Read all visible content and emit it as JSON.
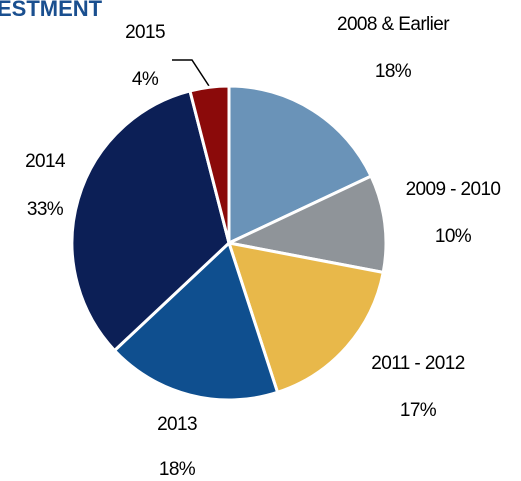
{
  "chart_data": {
    "type": "pie",
    "title": "ESTMENT",
    "categories": [
      "2008 & Earlier",
      "2009 - 2010",
      "2011 - 2012",
      "2013",
      "2014",
      "2015"
    ],
    "values": [
      18,
      10,
      17,
      18,
      33,
      4
    ],
    "value_labels": [
      "18%",
      "10%",
      "17%",
      "18%",
      "33%",
      "4%"
    ],
    "colors": [
      "#6a93b8",
      "#8f9499",
      "#e8b84a",
      "#0f4f8f",
      "#0c1f56",
      "#8b0a0a"
    ]
  }
}
